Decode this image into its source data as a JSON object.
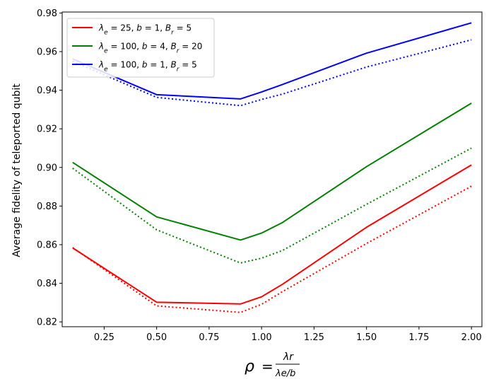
{
  "chart_data": {
    "type": "line",
    "title": "",
    "ylabel": "Average fidelity of teleported qubit",
    "xlabel": {
      "lhs": "ρ",
      "numerator": "λr",
      "denominator": "λe/b"
    },
    "xlim": [
      0.05,
      2.05
    ],
    "ylim": [
      0.8175,
      0.9805
    ],
    "xticks": [
      0.25,
      0.5,
      0.75,
      1.0,
      1.25,
      1.5,
      1.75,
      2.0
    ],
    "xtick_labels": [
      "0.25",
      "0.50",
      "0.75",
      "1.00",
      "1.25",
      "1.50",
      "1.75",
      "2.00"
    ],
    "yticks": [
      0.82,
      0.84,
      0.86,
      0.88,
      0.9,
      0.92,
      0.94,
      0.96,
      0.98
    ],
    "ytick_labels": [
      "0.82",
      "0.84",
      "0.86",
      "0.88",
      "0.90",
      "0.92",
      "0.94",
      "0.96",
      "0.98"
    ],
    "grid": false,
    "legend_position": "upper-left",
    "series": [
      {
        "name": "λe = 25, b = 1, Br = 5",
        "legend_parts": {
          "le": "25",
          "b": "1",
          "br": "5"
        },
        "color": "#ff0000",
        "solid": {
          "x": [
            0.1,
            0.5,
            0.9,
            1.0,
            1.1,
            1.5,
            2.0
          ],
          "y": [
            0.8583,
            0.8302,
            0.8293,
            0.833,
            0.8395,
            0.869,
            0.9013
          ]
        },
        "dotted": {
          "x": [
            0.1,
            0.5,
            0.9,
            1.0,
            1.1,
            1.5,
            2.0
          ],
          "y": [
            0.8585,
            0.8283,
            0.8249,
            0.8291,
            0.8357,
            0.8606,
            0.8903
          ]
        }
      },
      {
        "name": "λe = 100, b = 4, Br = 20",
        "legend_parts": {
          "le": "100",
          "b": "4",
          "br": "20"
        },
        "color": "#008000",
        "solid": {
          "x": [
            0.1,
            0.5,
            0.9,
            1.0,
            1.1,
            1.5,
            2.0
          ],
          "y": [
            0.9026,
            0.8744,
            0.8624,
            0.866,
            0.8715,
            0.9004,
            0.9333
          ]
        },
        "dotted": {
          "x": [
            0.1,
            0.5,
            0.9,
            1.0,
            1.1,
            1.5,
            2.0
          ],
          "y": [
            0.8996,
            0.8677,
            0.8505,
            0.853,
            0.857,
            0.8809,
            0.91
          ]
        }
      },
      {
        "name": "λe = 100, b = 1, Br = 5",
        "legend_parts": {
          "le": "100",
          "b": "1",
          "br": "5"
        },
        "color": "#0000ff",
        "solid": {
          "x": [
            0.1,
            0.5,
            0.9,
            1.0,
            1.1,
            1.5,
            2.0
          ],
          "y": [
            0.9562,
            0.9377,
            0.9355,
            0.9391,
            0.943,
            0.9592,
            0.9749
          ]
        },
        "dotted": {
          "x": [
            0.1,
            0.5,
            0.9,
            1.0,
            1.1,
            1.5,
            2.0
          ],
          "y": [
            0.955,
            0.9363,
            0.932,
            0.9352,
            0.938,
            0.952,
            0.9661
          ]
        }
      }
    ]
  }
}
